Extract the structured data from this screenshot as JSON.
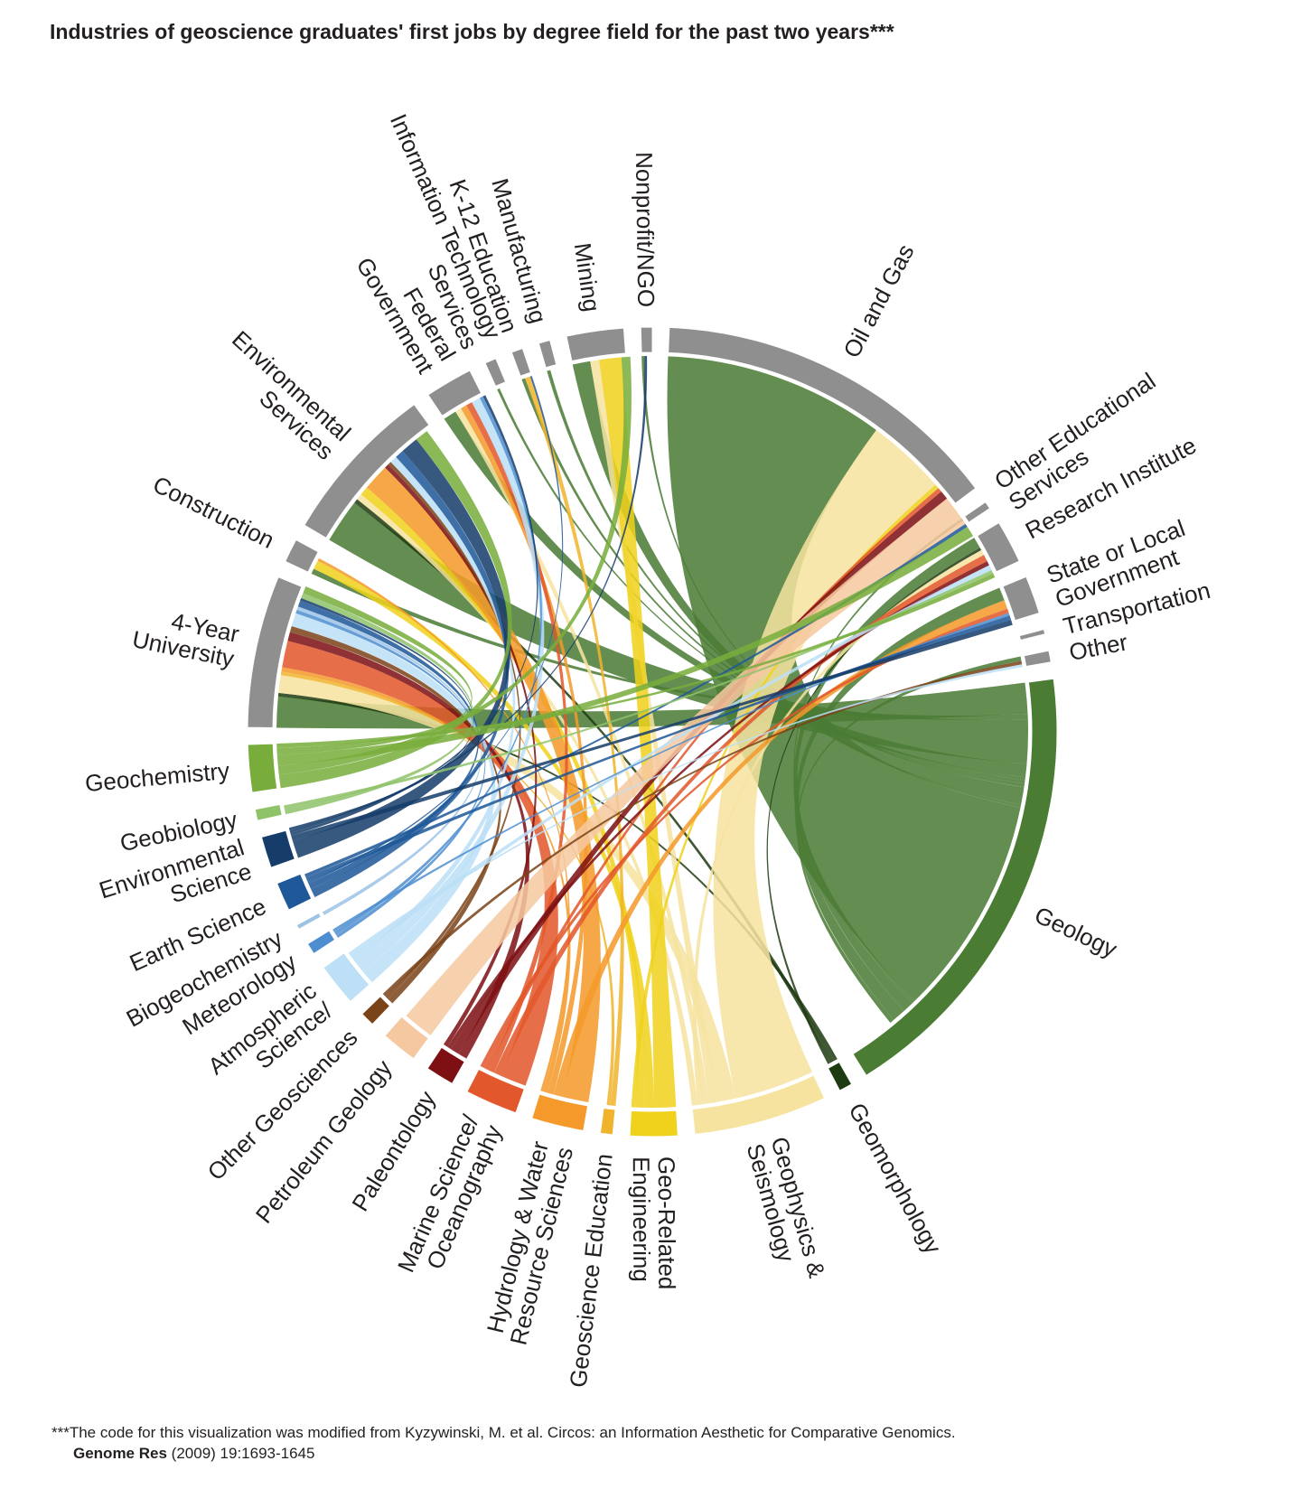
{
  "chart_data": {
    "type": "chord",
    "title": "Industries of geoscience graduates' first jobs by degree field for the past two years***",
    "degree_fields": [
      {
        "id": "geology",
        "label": "Geology",
        "lines": [
          "Geology"
        ],
        "color": "#4a7c34",
        "value": 48
      },
      {
        "id": "geomorphology",
        "label": "Geomorphology",
        "lines": [
          "Geomorphology"
        ],
        "color": "#1f3b12",
        "value": 1.4
      },
      {
        "id": "geophysics",
        "label": "Geophysics & Seismology",
        "lines": [
          "Geophysics &",
          "Seismology"
        ],
        "color": "#f6e3a0",
        "value": 14
      },
      {
        "id": "georelated_eng",
        "label": "Geo-Related Engineering",
        "lines": [
          "Geo-Related",
          "Engineering"
        ],
        "color": "#f0d21c",
        "value": 5
      },
      {
        "id": "geosci_edu",
        "label": "Geoscience Education",
        "lines": [
          "Geoscience Education"
        ],
        "color": "#f0b42c",
        "value": 1.3
      },
      {
        "id": "hydrology",
        "label": "Hydrology & Water Resource Sciences",
        "lines": [
          "Hydrology & Water",
          "Resource Sciences"
        ],
        "color": "#f59a2a",
        "value": 5.5
      },
      {
        "id": "marine",
        "label": "Marine Science/ Oceanography",
        "lines": [
          "Marine Science/",
          "Oceanography"
        ],
        "color": "#e2572b",
        "value": 5.5
      },
      {
        "id": "paleontology",
        "label": "Paleontology",
        "lines": [
          "Paleontology"
        ],
        "color": "#7e1014",
        "value": 3
      },
      {
        "id": "petroleum",
        "label": "Petroleum Geology",
        "lines": [
          "Petroleum Geology"
        ],
        "color": "#f6c8a0",
        "value": 3.8
      },
      {
        "id": "other_geosci",
        "label": "Other Geosciences",
        "lines": [
          "Other Geosciences"
        ],
        "color": "#7a4418",
        "value": 1.5
      },
      {
        "id": "atmospheric",
        "label": "Atmospheric Science/",
        "lines": [
          "Atmospheric",
          "Science/"
        ],
        "color": "#bde0f7",
        "value": 4.5
      },
      {
        "id": "meteorology",
        "label": "Meteorology",
        "lines": [
          "Meteorology"
        ],
        "color": "#4e8ed0",
        "value": 1.2
      },
      {
        "id": "biogeochemistry",
        "label": "Biogeochemistry",
        "lines": [
          "Biogeochemistry"
        ],
        "color": "#9cc3e6",
        "value": 0.5
      },
      {
        "id": "earth_science",
        "label": "Earth Science",
        "lines": [
          "Earth Science"
        ],
        "color": "#1e5899",
        "value": 3
      },
      {
        "id": "env_science",
        "label": "Environmental Science",
        "lines": [
          "Environmental",
          "Science"
        ],
        "color": "#163d6a",
        "value": 3.3
      },
      {
        "id": "geobiology",
        "label": "Geobiology",
        "lines": [
          "Geobiology"
        ],
        "color": "#8fc36a",
        "value": 1.2
      },
      {
        "id": "geochemistry",
        "label": "Geochemistry",
        "lines": [
          "Geochemistry"
        ],
        "color": "#78ad3c",
        "value": 5
      }
    ],
    "industries": [
      {
        "id": "univ",
        "label": "4-Year University",
        "lines": [
          "4-Year",
          "University"
        ],
        "value": 16
      },
      {
        "id": "construction",
        "label": "Construction",
        "lines": [
          "Construction"
        ],
        "value": 2.5
      },
      {
        "id": "env_services",
        "label": "Environmental Services",
        "lines": [
          "Environmental",
          "Services"
        ],
        "value": 17
      },
      {
        "id": "federal",
        "label": "Federal Government",
        "lines": [
          "Federal",
          "Government"
        ],
        "value": 5
      },
      {
        "id": "it",
        "label": "Information Technology Services",
        "lines": [
          "Information Technology",
          "Services"
        ],
        "value": 1.2
      },
      {
        "id": "k12",
        "label": "K-12 Education",
        "lines": [
          "K-12 Education"
        ],
        "value": 1.2
      },
      {
        "id": "manufacturing",
        "label": "Manufacturing",
        "lines": [
          "Manufacturing"
        ],
        "value": 1.2
      },
      {
        "id": "mining",
        "label": "Mining",
        "lines": [
          "Mining"
        ],
        "value": 6
      },
      {
        "id": "nonprofit",
        "label": "Nonprofit/NGO",
        "lines": [
          "Nonprofit/NGO"
        ],
        "value": 1.2
      },
      {
        "id": "oil_gas",
        "label": "Oil and Gas",
        "lines": [
          "Oil and Gas"
        ],
        "value": 37
      },
      {
        "id": "other_edu",
        "label": "Other Educational Services",
        "lines": [
          "Other Educational",
          "Services"
        ],
        "value": 0.8
      },
      {
        "id": "research",
        "label": "Research Institute",
        "lines": [
          "Research Institute"
        ],
        "value": 4.5
      },
      {
        "id": "state_local",
        "label": "State or Local Government",
        "lines": [
          "State or Local",
          "Government"
        ],
        "value": 4
      },
      {
        "id": "transportation",
        "label": "Transportation",
        "lines": [
          "Transportation"
        ],
        "value": 0.5
      },
      {
        "id": "other",
        "label": "Other",
        "lines": [
          "Other"
        ],
        "value": 1.2
      }
    ],
    "flows": [
      [
        "geology",
        "univ",
        3.5
      ],
      [
        "geology",
        "construction",
        0.6
      ],
      [
        "geology",
        "env_services",
        5
      ],
      [
        "geology",
        "federal",
        1.5
      ],
      [
        "geology",
        "it",
        0.3
      ],
      [
        "geology",
        "k12",
        0.4
      ],
      [
        "geology",
        "manufacturing",
        0.4
      ],
      [
        "geology",
        "mining",
        2
      ],
      [
        "geology",
        "nonprofit",
        0.3
      ],
      [
        "geology",
        "oil_gas",
        25
      ],
      [
        "geology",
        "other_edu",
        0.3
      ],
      [
        "geology",
        "research",
        1.3
      ],
      [
        "geology",
        "state_local",
        1.5
      ],
      [
        "geology",
        "other",
        0.5
      ],
      [
        "geomorphology",
        "univ",
        0.4
      ],
      [
        "geomorphology",
        "env_services",
        0.5
      ],
      [
        "geomorphology",
        "research",
        0.3
      ],
      [
        "geophysics",
        "oil_gas",
        9
      ],
      [
        "geophysics",
        "univ",
        2
      ],
      [
        "geophysics",
        "mining",
        1
      ],
      [
        "geophysics",
        "federal",
        0.7
      ],
      [
        "geophysics",
        "research",
        0.6
      ],
      [
        "geophysics",
        "env_services",
        0.7
      ],
      [
        "georelated_eng",
        "mining",
        2.5
      ],
      [
        "georelated_eng",
        "construction",
        1
      ],
      [
        "georelated_eng",
        "env_services",
        1
      ],
      [
        "georelated_eng",
        "oil_gas",
        0.5
      ],
      [
        "geosci_edu",
        "k12",
        0.6
      ],
      [
        "geosci_edu",
        "univ",
        0.4
      ],
      [
        "hydrology",
        "env_services",
        3
      ],
      [
        "hydrology",
        "state_local",
        1
      ],
      [
        "hydrology",
        "federal",
        0.7
      ],
      [
        "hydrology",
        "univ",
        0.5
      ],
      [
        "hydrology",
        "construction",
        0.3
      ],
      [
        "marine",
        "univ",
        3
      ],
      [
        "marine",
        "research",
        0.8
      ],
      [
        "marine",
        "federal",
        0.7
      ],
      [
        "marine",
        "oil_gas",
        0.5
      ],
      [
        "marine",
        "state_local",
        0.5
      ],
      [
        "paleontology",
        "univ",
        1
      ],
      [
        "paleontology",
        "oil_gas",
        1
      ],
      [
        "paleontology",
        "research",
        0.5
      ],
      [
        "paleontology",
        "env_services",
        0.5
      ],
      [
        "petroleum",
        "oil_gas",
        3.5
      ],
      [
        "other_geosci",
        "univ",
        0.7
      ],
      [
        "other_geosci",
        "env_services",
        0.4
      ],
      [
        "other_geosci",
        "other",
        0.4
      ],
      [
        "atmospheric",
        "univ",
        1.5
      ],
      [
        "atmospheric",
        "federal",
        1
      ],
      [
        "atmospheric",
        "env_services",
        0.8
      ],
      [
        "atmospheric",
        "research",
        0.6
      ],
      [
        "atmospheric",
        "other",
        0.3
      ],
      [
        "meteorology",
        "univ",
        0.4
      ],
      [
        "meteorology",
        "federal",
        0.4
      ],
      [
        "meteorology",
        "state_local",
        0.3
      ],
      [
        "biogeochemistry",
        "univ",
        0.4
      ],
      [
        "earth_science",
        "env_services",
        1
      ],
      [
        "earth_science",
        "univ",
        0.7
      ],
      [
        "earth_science",
        "k12",
        0.2
      ],
      [
        "earth_science",
        "state_local",
        0.5
      ],
      [
        "earth_science",
        "oil_gas",
        0.4
      ],
      [
        "env_science",
        "env_services",
        2
      ],
      [
        "env_science",
        "state_local",
        0.6
      ],
      [
        "env_science",
        "federal",
        0.3
      ],
      [
        "env_science",
        "nonprofit",
        0.3
      ],
      [
        "env_science",
        "univ",
        0.3
      ],
      [
        "geobiology",
        "univ",
        0.6
      ],
      [
        "geobiology",
        "research",
        0.4
      ],
      [
        "geochemistry",
        "env_services",
        1.5
      ],
      [
        "geochemistry",
        "mining",
        1
      ],
      [
        "geochemistry",
        "oil_gas",
        1.2
      ],
      [
        "geochemistry",
        "univ",
        0.8
      ],
      [
        "geochemistry",
        "research",
        0.5
      ]
    ],
    "industry_color": "#8f8f8f",
    "ribbon_opacity": 0.86
  },
  "footnote": {
    "text": "***The code for this visualization was modified from Kyzywinski, M. et al. Circos: an Information Aesthetic for Comparative Genomics.",
    "journal": "Genome Res",
    "citation": "(2009) 19:1693-1645"
  }
}
